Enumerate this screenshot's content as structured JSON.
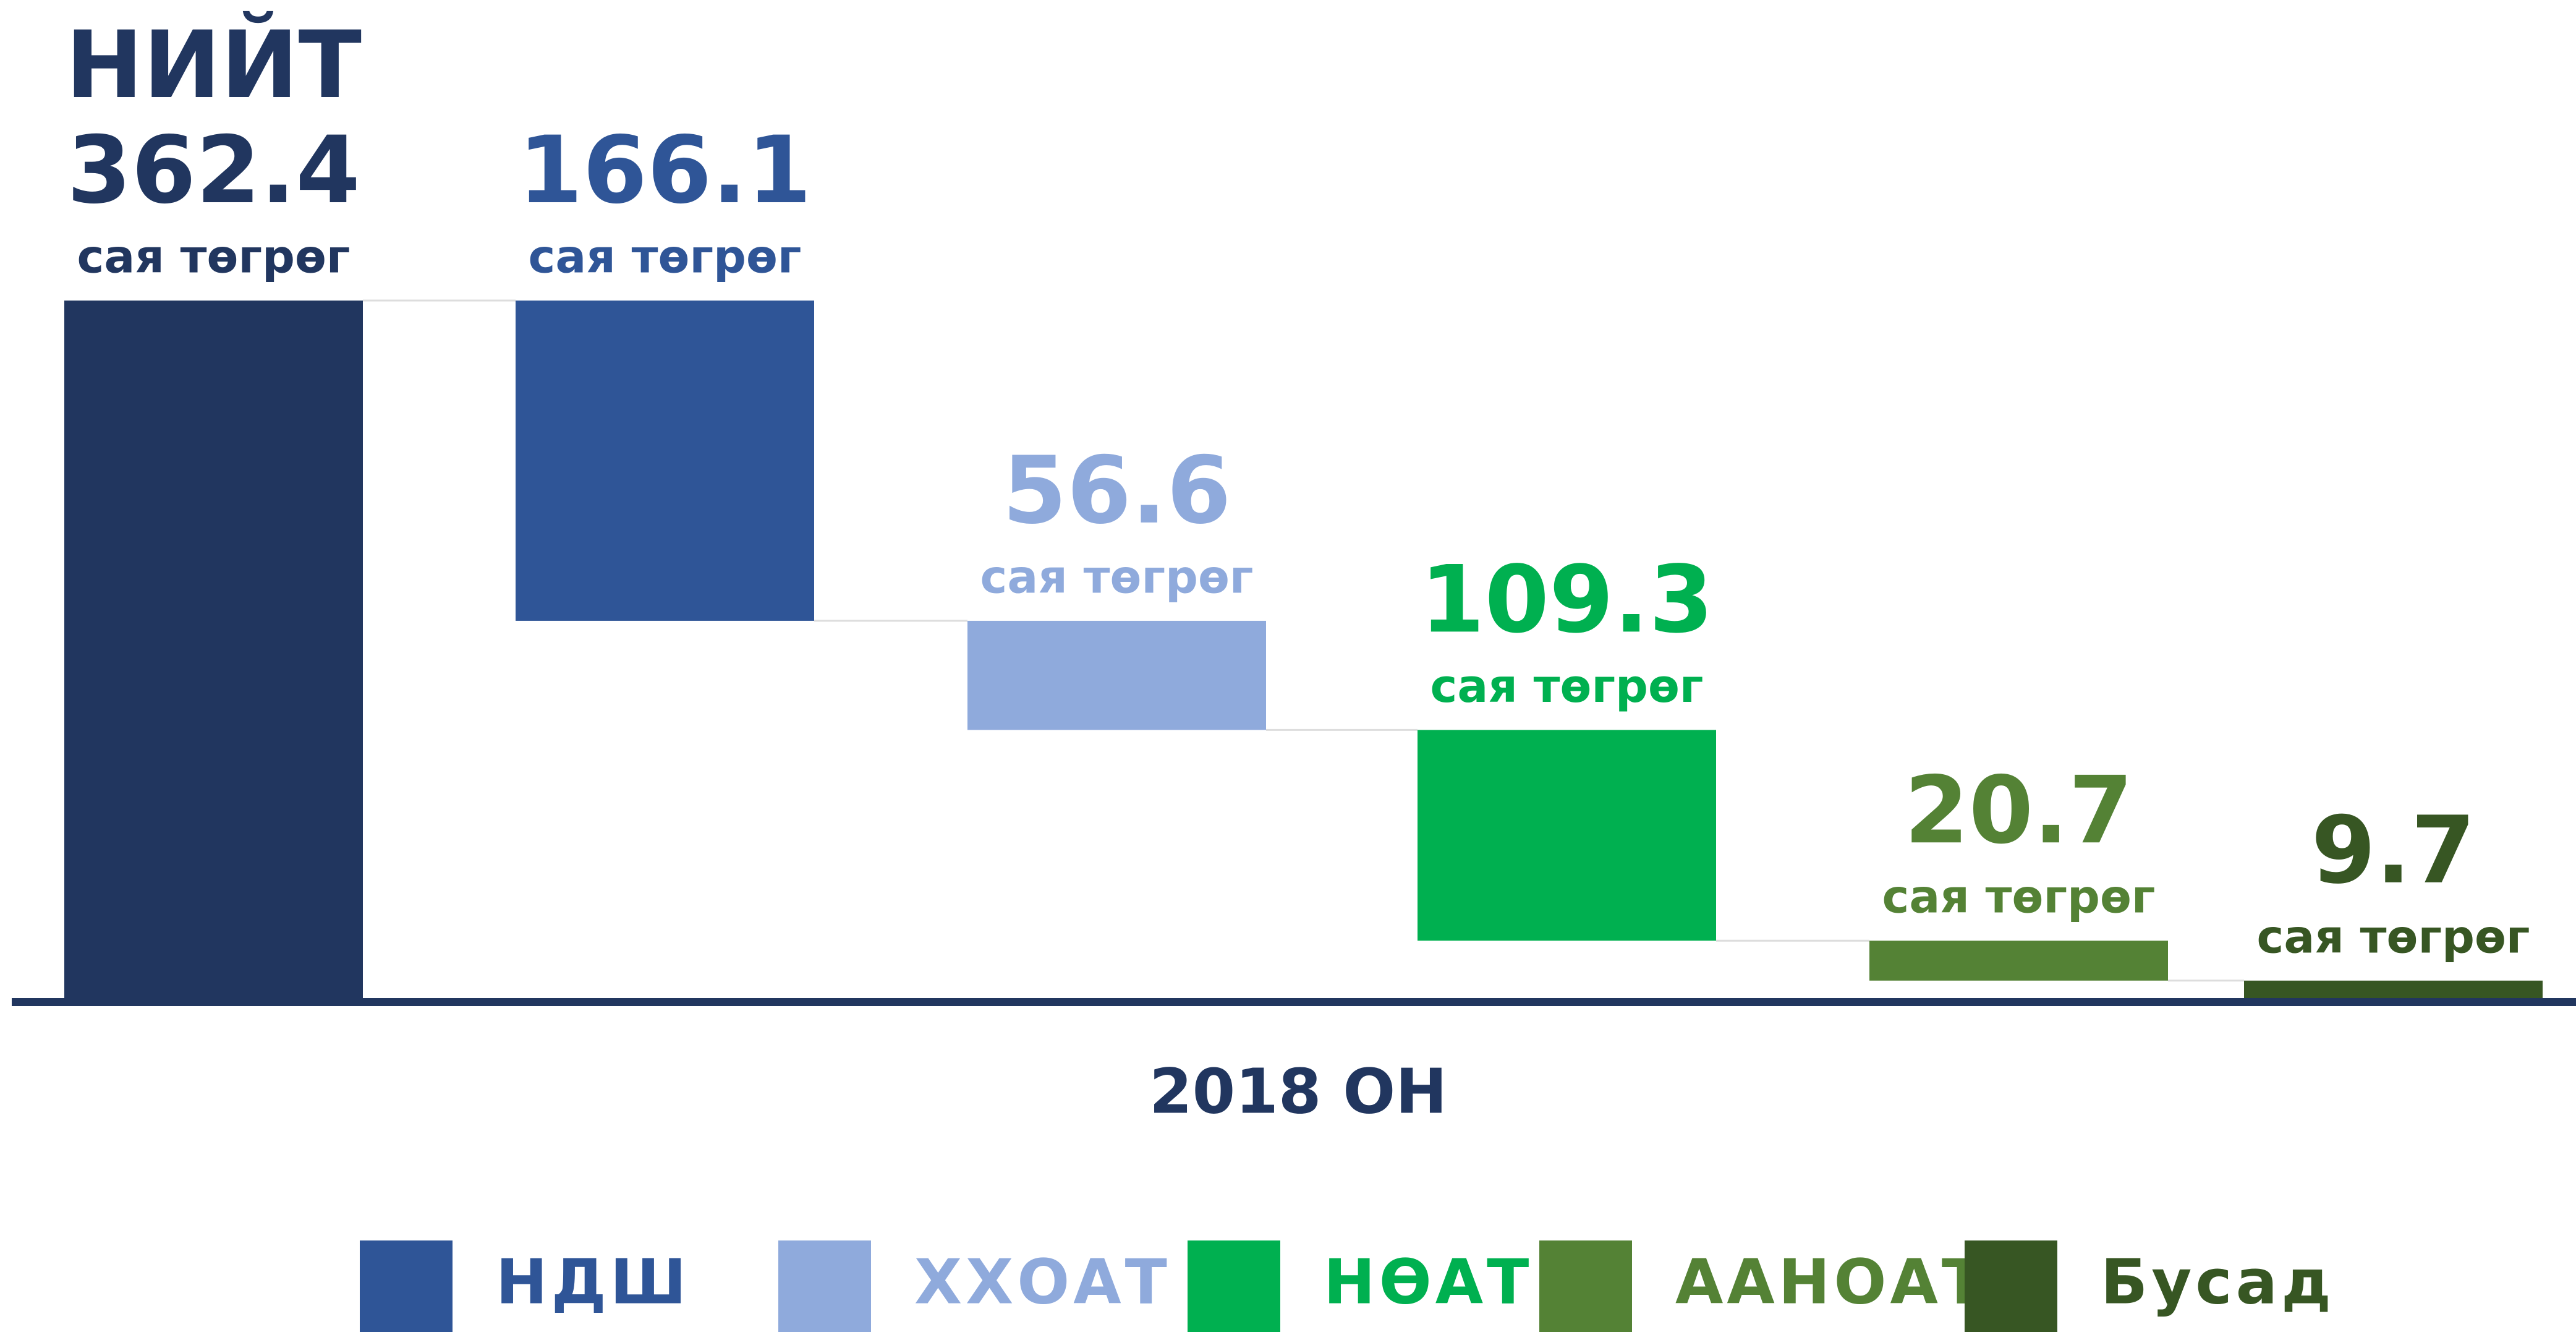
{
  "chart_data": {
    "type": "waterfall",
    "total": {
      "label": "НИЙТ",
      "value": 362.4,
      "color": "#21365f"
    },
    "unit": "сая төгрөг",
    "x_label": "2018 ОН",
    "series": [
      {
        "name": "НДШ",
        "color": "#2f5597",
        "values": [
          166.1
        ]
      },
      {
        "name": "ХХОАТ",
        "color": "#8faadc",
        "values": [
          56.6
        ]
      },
      {
        "name": "НӨАТ",
        "color": "#00b050",
        "values": [
          109.3
        ]
      },
      {
        "name": "ААНОАТ",
        "color": "#548235",
        "values": [
          20.7
        ]
      },
      {
        "name": "Бусад",
        "color": "#375623",
        "values": [
          9.7
        ]
      }
    ]
  }
}
